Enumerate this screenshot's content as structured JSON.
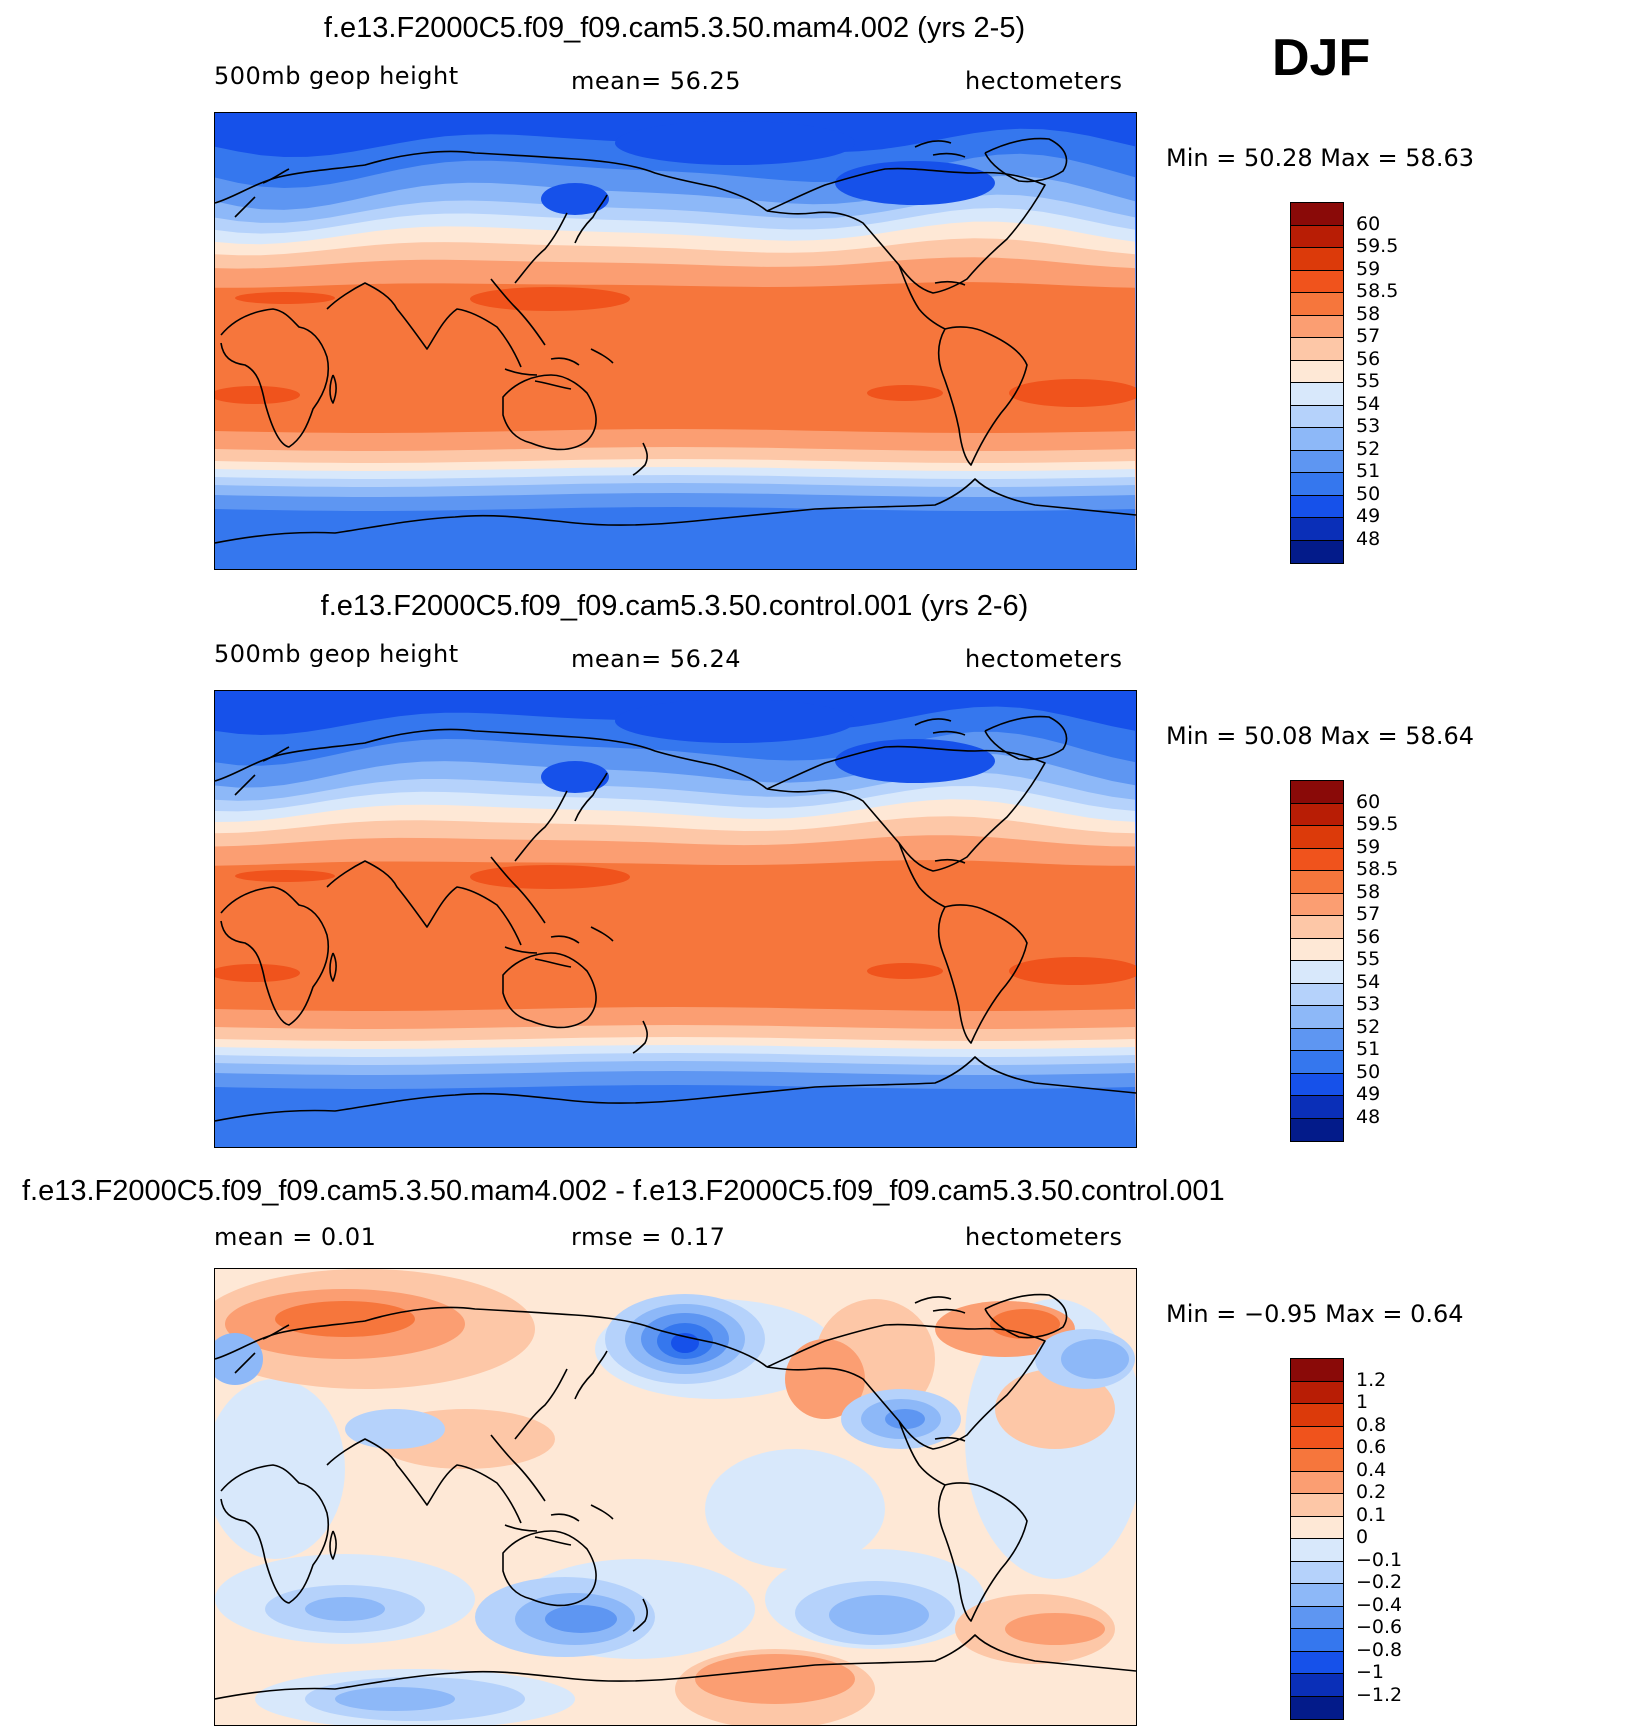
{
  "season": "DJF",
  "panels": [
    {
      "title": "f.e13.F2000C5.f09_f09.cam5.3.50.mam4.002 (yrs 2-5)",
      "left_label": "500mb geop height",
      "center_label": "mean=   56.25",
      "right_label": "hectometers",
      "min_max": "Min =   50.28  Max =   58.63",
      "colorbar": {
        "labels": [
          "60",
          "59.5",
          "59",
          "58.5",
          "58",
          "57",
          "56",
          "55",
          "54",
          "53",
          "52",
          "51",
          "50",
          "49",
          "48"
        ],
        "colors": [
          "#8a0a08",
          "#b81d05",
          "#dc3a0a",
          "#f0531c",
          "#f6763c",
          "#fb9e72",
          "#fdc7a7",
          "#fee8d6",
          "#d8e8fb",
          "#b5d2fb",
          "#8db8f8",
          "#5e96f2",
          "#3577ee",
          "#1651ea",
          "#0a2fb8",
          "#031b8a"
        ]
      },
      "map_kind": "height"
    },
    {
      "title": "f.e13.F2000C5.f09_f09.cam5.3.50.control.001 (yrs 2-6)",
      "left_label": "500mb geop height",
      "center_label": "mean=   56.24",
      "right_label": "hectometers",
      "min_max": "Min =   50.08  Max =   58.64",
      "colorbar": {
        "labels": [
          "60",
          "59.5",
          "59",
          "58.5",
          "58",
          "57",
          "56",
          "55",
          "54",
          "53",
          "52",
          "51",
          "50",
          "49",
          "48"
        ],
        "colors": [
          "#8a0a08",
          "#b81d05",
          "#dc3a0a",
          "#f0531c",
          "#f6763c",
          "#fb9e72",
          "#fdc7a7",
          "#fee8d6",
          "#d8e8fb",
          "#b5d2fb",
          "#8db8f8",
          "#5e96f2",
          "#3577ee",
          "#1651ea",
          "#0a2fb8",
          "#031b8a"
        ]
      },
      "map_kind": "height"
    },
    {
      "title": "f.e13.F2000C5.f09_f09.cam5.3.50.mam4.002 - f.e13.F2000C5.f09_f09.cam5.3.50.control.001",
      "left_label": "mean =    0.01",
      "center_label": "rmse =    0.17",
      "right_label": "hectometers",
      "min_max": "Min =  −0.95  Max =    0.64",
      "colorbar": {
        "labels": [
          "1.2",
          "1",
          "0.8",
          "0.6",
          "0.4",
          "0.2",
          "0.1",
          "0",
          "−0.1",
          "−0.2",
          "−0.4",
          "−0.6",
          "−0.8",
          "−1",
          "−1.2"
        ],
        "colors": [
          "#8a0a08",
          "#b81d05",
          "#dc3a0a",
          "#f0531c",
          "#f6763c",
          "#fb9e72",
          "#fdc7a7",
          "#fee8d6",
          "#d8e8fb",
          "#b5d2fb",
          "#8db8f8",
          "#5e96f2",
          "#3577ee",
          "#1651ea",
          "#0a2fb8",
          "#031b8a"
        ]
      },
      "map_kind": "difference"
    }
  ]
}
